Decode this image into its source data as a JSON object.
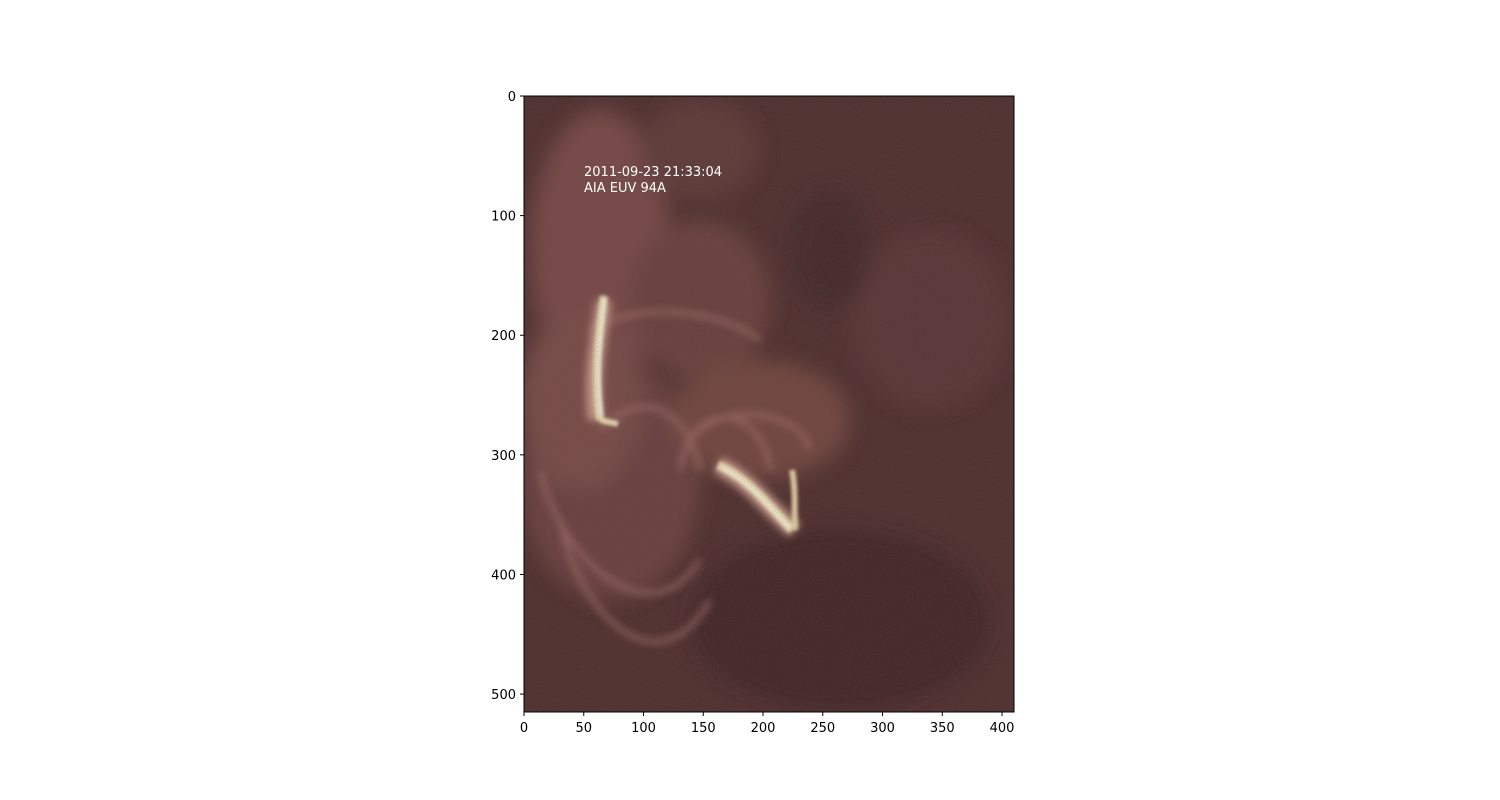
{
  "image": {
    "annotation": {
      "line1": "2011-09-23 21:33:04",
      "line2": "AIA EUV 94A"
    },
    "colormap": [
      "#3a2223",
      "#5a3533",
      "#8a5752",
      "#c49488",
      "#efe6b8",
      "#ffffe6"
    ]
  },
  "axes": {
    "x": {
      "range": [
        0,
        410
      ],
      "ticks": [
        0,
        50,
        100,
        150,
        200,
        250,
        300,
        350,
        400
      ]
    },
    "y": {
      "range": [
        0,
        515
      ],
      "inverted": true,
      "ticks": [
        0,
        100,
        200,
        300,
        400,
        500
      ]
    }
  }
}
